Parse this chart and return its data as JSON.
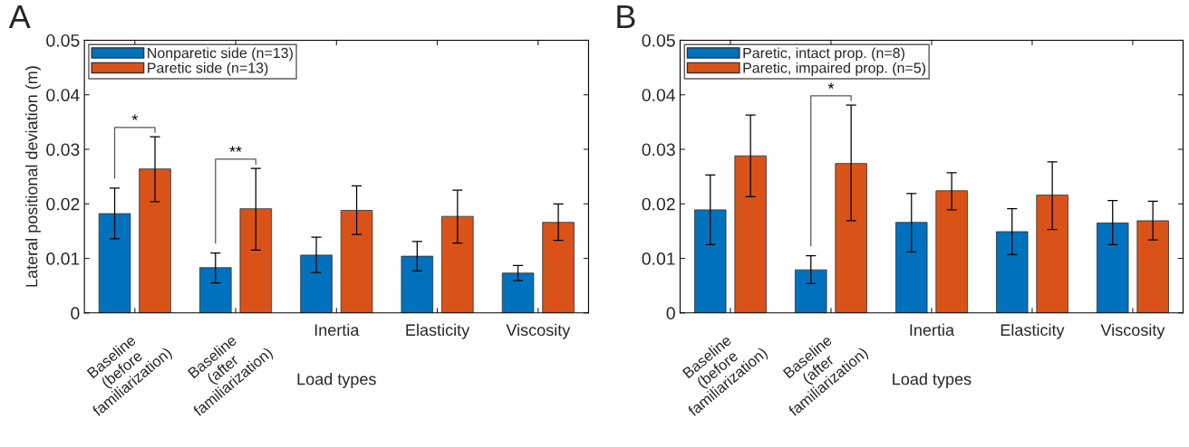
{
  "chart_data": [
    {
      "type": "bar",
      "title": "A",
      "xlabel": "Load types",
      "ylabel": "Lateral positional deviation (m)",
      "categories": [
        "Baseline\n(before\nfamiliarization)",
        "Baseline\n(after\nfamiliarization)",
        "Inertia",
        "Elasticity",
        "Viscosity"
      ],
      "series": [
        {
          "name": "Nonparetic side (n=13)",
          "color": "#0072bd",
          "values": [
            0.0182,
            0.0083,
            0.0106,
            0.0104,
            0.0073
          ],
          "errors": [
            [
              0.0136,
              0.0229
            ],
            [
              0.0055,
              0.011
            ],
            [
              0.0074,
              0.0139
            ],
            [
              0.0077,
              0.0131
            ],
            [
              0.0059,
              0.0087
            ]
          ]
        },
        {
          "name": "Paretic side (n=13)",
          "color": "#d95319",
          "values": [
            0.0264,
            0.0191,
            0.0188,
            0.0177,
            0.0166
          ],
          "errors": [
            [
              0.0204,
              0.0323
            ],
            [
              0.0115,
              0.0265
            ],
            [
              0.0144,
              0.0233
            ],
            [
              0.0128,
              0.0225
            ],
            [
              0.0133,
              0.02
            ]
          ]
        }
      ],
      "annotations": [
        "*",
        "**"
      ],
      "ylim": [
        0,
        0.05
      ],
      "yticks": [
        0,
        0.01,
        0.02,
        0.03,
        0.04,
        0.05
      ],
      "grid": false,
      "legend": "top left"
    },
    {
      "type": "bar",
      "title": "B",
      "xlabel": "Load types",
      "categories": [
        "Baseline\n(before\nfamiliarization)",
        "Baseline\n(after\nfamiliarization)",
        "Inertia",
        "Elasticity",
        "Viscosity"
      ],
      "series": [
        {
          "name": "Paretic, intact prop. (n=8)",
          "color": "#0072bd",
          "values": [
            0.0189,
            0.0079,
            0.0166,
            0.0149,
            0.0165
          ],
          "errors": [
            [
              0.0125,
              0.0253
            ],
            [
              0.0054,
              0.0105
            ],
            [
              0.0112,
              0.0219
            ],
            [
              0.0107,
              0.0191
            ],
            [
              0.0125,
              0.0206
            ]
          ]
        },
        {
          "name": "Paretic, impaired prop. (n=5)",
          "color": "#d95319",
          "values": [
            0.0288,
            0.0274,
            0.0224,
            0.0216,
            0.0169
          ],
          "errors": [
            [
              0.0213,
              0.0363
            ],
            [
              0.0169,
              0.0381
            ],
            [
              0.0189,
              0.0257
            ],
            [
              0.0153,
              0.0277
            ],
            [
              0.0134,
              0.0205
            ]
          ]
        }
      ],
      "annotations": [
        "*"
      ],
      "ylim": [
        0,
        0.05
      ],
      "yticks": [
        0,
        0.01,
        0.02,
        0.03,
        0.04,
        0.05
      ],
      "grid": false,
      "legend": "top left"
    }
  ]
}
